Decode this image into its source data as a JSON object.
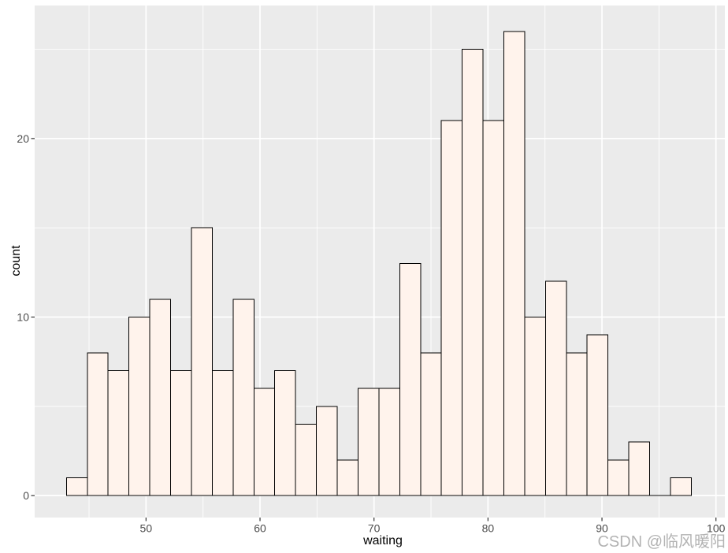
{
  "chart_data": {
    "type": "bar",
    "subtype": "histogram",
    "title": "",
    "xlabel": "waiting",
    "ylabel": "count",
    "bin_start": 43.02,
    "bin_width": 1.8272,
    "counts": [
      1,
      8,
      7,
      10,
      11,
      7,
      15,
      7,
      11,
      6,
      7,
      4,
      5,
      2,
      6,
      6,
      13,
      8,
      21,
      25,
      21,
      26,
      10,
      12,
      8,
      9,
      2,
      3,
      0,
      1
    ],
    "x_major_ticks": [
      50,
      60,
      70,
      80,
      90,
      100
    ],
    "x_minor_gridlines": [
      45,
      55,
      65,
      75,
      85,
      95
    ],
    "y_major_ticks": [
      0,
      10,
      20
    ],
    "y_minor_gridlines": [
      5,
      15,
      25
    ],
    "xlim": [
      40.23,
      100.78
    ],
    "ylim": [
      -1.23,
      27.45
    ],
    "grid": "on",
    "legend_position": "none",
    "colors": {
      "panel_background": "#EBEBEB",
      "gridline": "#FFFFFF",
      "bar_fill": "#FFF3EC",
      "bar_stroke": "#000000",
      "tick_label": "#4D4D4D",
      "tick_mark": "#333333",
      "axis_title": "#000000"
    }
  },
  "watermark": {
    "text": "CSDN @临风暖阳",
    "color": "#B3B3B3"
  }
}
